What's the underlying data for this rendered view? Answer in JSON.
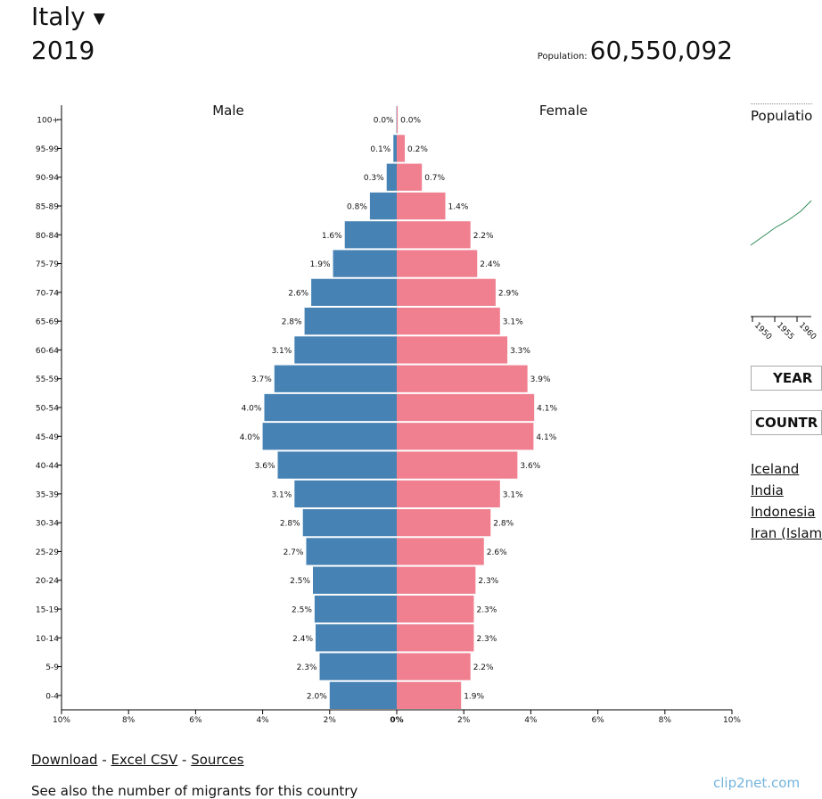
{
  "header": {
    "country": "Italy",
    "caret": "▼",
    "year": "2019",
    "population_label": "Population:",
    "population_value": "60,550,092"
  },
  "sidebar": {
    "population_title": "Populatio",
    "mini_axis_labels": [
      "1950",
      "1955",
      "1960"
    ],
    "year_button": "YEAR",
    "country_button": "COUNTR",
    "countries": [
      "Iceland",
      "India",
      "Indonesia",
      "Iran (Islam"
    ]
  },
  "footer": {
    "download": "Download",
    "sep1": " - ",
    "excel_csv": "Excel CSV",
    "sep2": " - ",
    "sources": "Sources",
    "note": "See also the number of migrants for this country"
  },
  "watermark": "clip2net.com",
  "colors": {
    "male": "#4682b4",
    "female": "#f08090",
    "axis": "#000000"
  },
  "chart_data": {
    "type": "bar",
    "orientation": "horizontal-pyramid",
    "left_label": "Male",
    "right_label": "Female",
    "xlim": [
      -10,
      10
    ],
    "x_ticks": [
      "10%",
      "8%",
      "6%",
      "4%",
      "2%",
      "0%",
      "2%",
      "4%",
      "6%",
      "8%",
      "10%"
    ],
    "categories": [
      "100+",
      "95-99",
      "90-94",
      "85-89",
      "80-84",
      "75-79",
      "70-74",
      "65-69",
      "60-64",
      "55-59",
      "50-54",
      "45-49",
      "40-44",
      "35-39",
      "30-34",
      "25-29",
      "20-24",
      "15-19",
      "10-14",
      "5-9",
      "0-4"
    ],
    "series": [
      {
        "name": "Male",
        "values": [
          0.01,
          0.1,
          0.3,
          0.8,
          1.55,
          1.9,
          2.55,
          2.75,
          3.05,
          3.65,
          3.95,
          4.0,
          3.55,
          3.05,
          2.8,
          2.7,
          2.5,
          2.45,
          2.42,
          2.3,
          2.0
        ],
        "labels": [
          "0.0%",
          "0.1%",
          "0.3%",
          "0.8%",
          "1.6%",
          "1.9%",
          "2.6%",
          "2.8%",
          "3.1%",
          "3.7%",
          "4.0%",
          "4.0%",
          "3.6%",
          "3.1%",
          "2.8%",
          "2.7%",
          "2.5%",
          "2.5%",
          "2.4%",
          "2.3%",
          "2.0%"
        ]
      },
      {
        "name": "Female",
        "values": [
          0.03,
          0.24,
          0.75,
          1.45,
          2.2,
          2.4,
          2.95,
          3.08,
          3.3,
          3.9,
          4.1,
          4.08,
          3.6,
          3.08,
          2.8,
          2.6,
          2.35,
          2.3,
          2.3,
          2.2,
          1.92
        ],
        "labels": [
          "0.0%",
          "0.2%",
          "0.7%",
          "1.4%",
          "2.2%",
          "2.4%",
          "2.9%",
          "3.1%",
          "3.3%",
          "3.9%",
          "4.1%",
          "4.1%",
          "3.6%",
          "3.1%",
          "2.8%",
          "2.6%",
          "2.3%",
          "2.3%",
          "2.3%",
          "2.2%",
          "1.9%"
        ]
      }
    ]
  }
}
